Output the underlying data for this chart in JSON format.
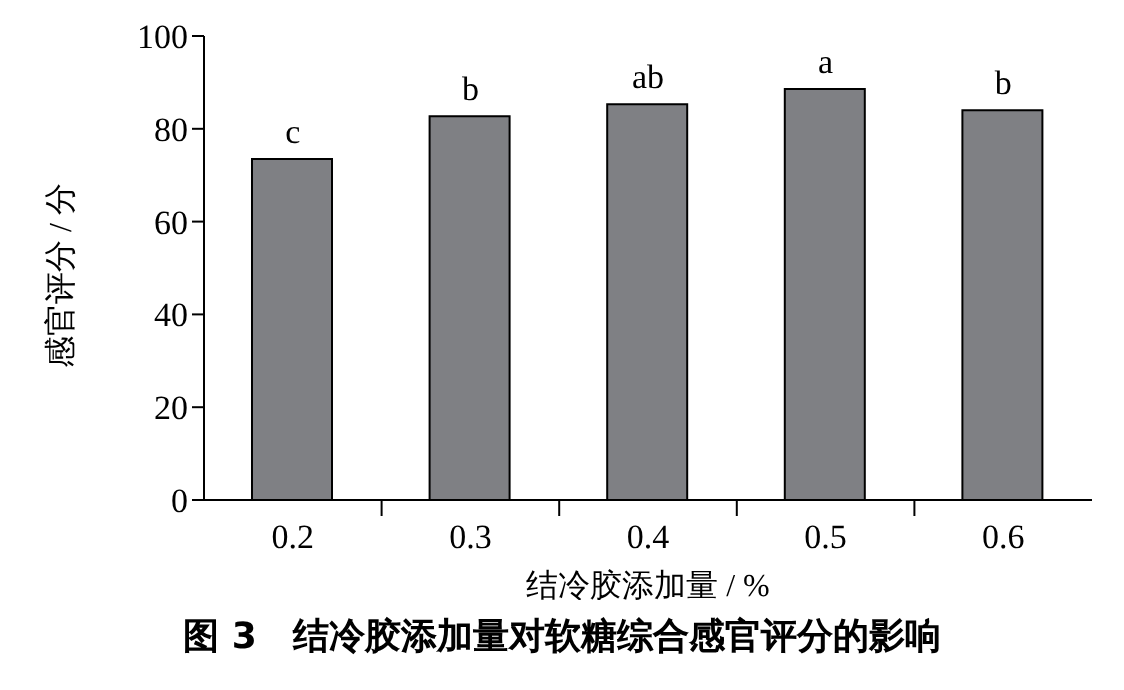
{
  "chart_data": {
    "type": "bar",
    "title": "图 3　结冷胶添加量对软糖综合感官评分的影响",
    "xlabel": "结冷胶添加量 / %",
    "ylabel": "感官评分 / 分",
    "categories": [
      "0.2",
      "0.3",
      "0.4",
      "0.5",
      "0.6"
    ],
    "values": [
      73.5,
      82.7,
      85.3,
      88.6,
      84.0
    ],
    "color": "#7f8084",
    "ylim": [
      0,
      100
    ],
    "yticks": [
      0,
      20,
      40,
      60,
      80,
      100
    ],
    "grid": false,
    "legend": false,
    "annotations": [
      {
        "text": "c",
        "x": "0.2",
        "y": 73.5
      },
      {
        "text": "b",
        "x": "0.3",
        "y": 82.7
      },
      {
        "text": "ab",
        "x": "0.4",
        "y": 85.3
      },
      {
        "text": "a",
        "x": "0.5",
        "y": 88.6
      },
      {
        "text": "b",
        "x": "0.6",
        "y": 84.0
      }
    ]
  }
}
